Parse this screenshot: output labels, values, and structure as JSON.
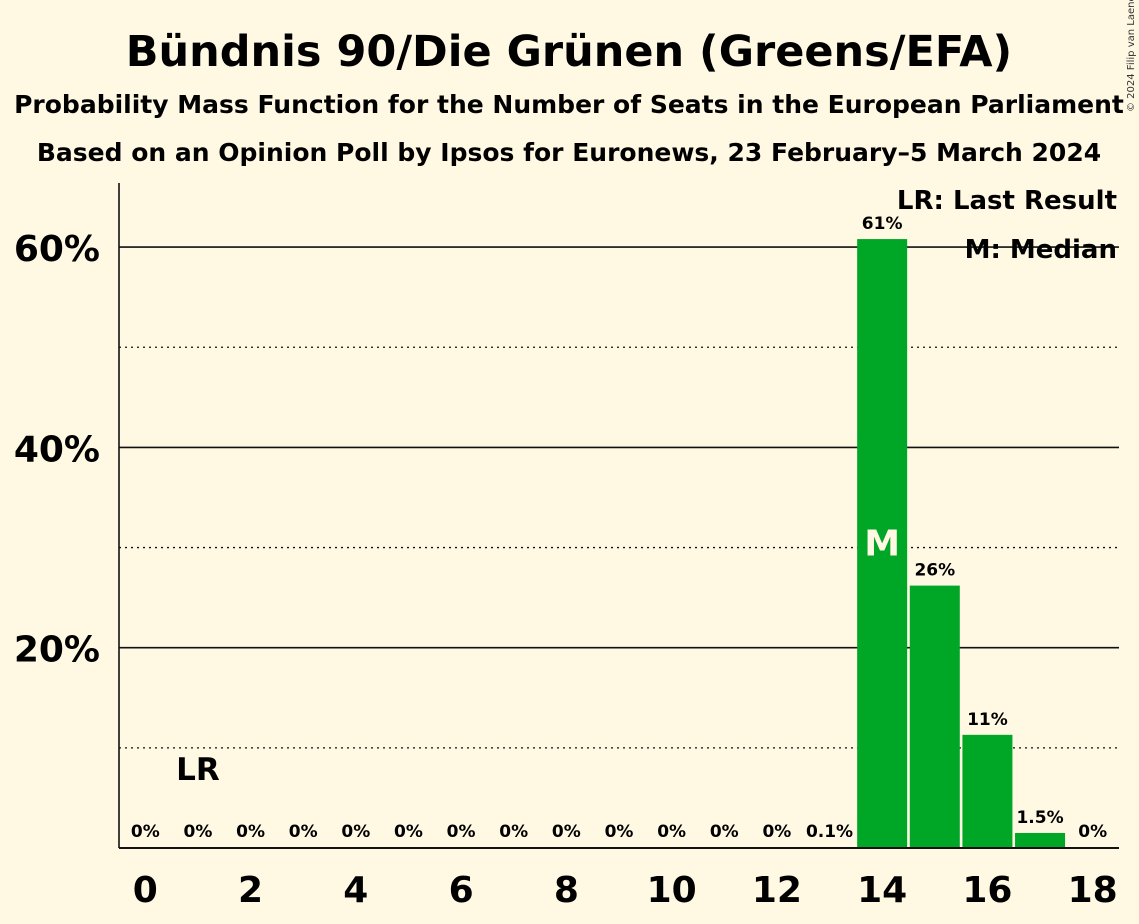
{
  "copyright": "© 2024 Filip van Laenen",
  "chart_data": {
    "type": "bar",
    "title": "Bündnis 90/Die Grünen (Greens/EFA)",
    "subtitle": "Probability Mass Function for the Number of Seats in the European Parliament",
    "subtitle2": "Based on an Opinion Poll by Ipsos for Euronews, 23 February–5 March 2024",
    "x": [
      0,
      1,
      2,
      3,
      4,
      5,
      6,
      7,
      8,
      9,
      10,
      11,
      12,
      13,
      14,
      15,
      16,
      17,
      18
    ],
    "values": [
      0,
      0,
      0,
      0,
      0,
      0,
      0,
      0,
      0,
      0,
      0,
      0,
      0,
      0.1,
      60.8,
      26.2,
      11.3,
      1.5,
      0
    ],
    "data_labels": [
      "0%",
      "0%",
      "0%",
      "0%",
      "0%",
      "0%",
      "0%",
      "0%",
      "0%",
      "0%",
      "0%",
      "0%",
      "0%",
      "0.1%",
      "61%",
      "26%",
      "11%",
      "1.5%",
      "0%"
    ],
    "x_tick_labels": [
      "0",
      "2",
      "4",
      "6",
      "8",
      "10",
      "12",
      "14",
      "16",
      "18"
    ],
    "x_ticks": [
      0,
      2,
      4,
      6,
      8,
      10,
      12,
      14,
      16,
      18
    ],
    "y_tick_labels": [
      "20%",
      "40%",
      "60%"
    ],
    "y_ticks": [
      20,
      40,
      60
    ],
    "y_minor_gridlines": [
      10,
      30,
      50
    ],
    "ylim": [
      0,
      66.4
    ],
    "xlim": [
      -0.5,
      18.5
    ],
    "bar_color": "#00a626",
    "background": "#fff8e3",
    "last_result": {
      "seat": 1,
      "label": "LR"
    },
    "median": {
      "seat": 14,
      "label": "M"
    },
    "legend": [
      "LR: Last Result",
      "M: Median"
    ],
    "legend_position": "top-right"
  }
}
